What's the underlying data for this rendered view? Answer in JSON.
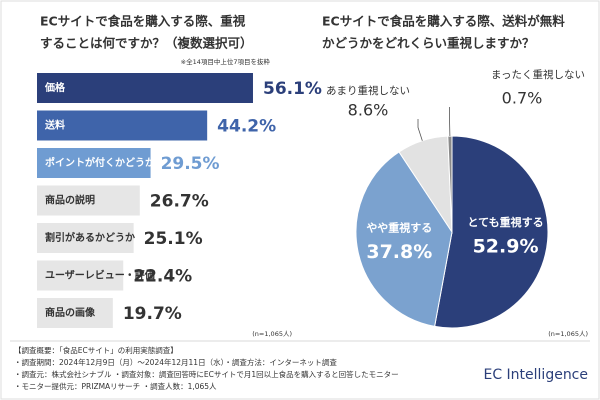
{
  "chart_data": [
    {
      "type": "barh",
      "title": [
        "ECサイトで食品を購入する際、重視",
        "することは何ですか？（複数選択可）"
      ],
      "subtitle": "※全14項目中上位7項目を抜粋",
      "categories": [
        "価格",
        "送料",
        "ポイントが付くかどうか",
        "商品の説明",
        "割引があるかどうか",
        "ユーザーレビュー・評価",
        "商品の画像"
      ],
      "values": [
        56.1,
        44.2,
        29.5,
        26.7,
        25.1,
        22.4,
        19.7
      ],
      "value_labels": [
        "56.1%",
        "44.2%",
        "29.5%",
        "26.7%",
        "25.1%",
        "22.4%",
        "19.7%"
      ],
      "colors": [
        "#2b3f7a",
        "#3f64aa",
        "#6f9cd2",
        "#e6e6e6",
        "#e6e6e6",
        "#e6e6e6",
        "#e6e6e6"
      ],
      "label_colors": [
        "#2b3f7a",
        "#3f64aa",
        "#6f9cd2",
        "#333333",
        "#333333",
        "#333333",
        "#333333"
      ],
      "xlim": [
        0,
        100
      ],
      "note": "(n=1,065人)"
    },
    {
      "type": "pie",
      "title": [
        "ECサイトで食品を購入する際、送料が無料",
        "かどうかをどれくらい重視しますか？"
      ],
      "categories": [
        "とても重視する",
        "やや重視する",
        "あまり重視しない",
        "まったく重視しない"
      ],
      "values": [
        52.9,
        37.8,
        8.6,
        0.7
      ],
      "value_labels": [
        "52.9%",
        "37.8%",
        "8.6%",
        "0.7%"
      ],
      "colors": [
        "#2b3f7a",
        "#7ba2cf",
        "#e2e2e2",
        "#8a8a8a"
      ],
      "note": "(n=1,065人)"
    }
  ],
  "footer": {
    "lines": [
      "【調査概要：「食品ECサイト」の利用実態調査】",
      "・調査期間：2024年12月9日（月）～2024年12月11日（水）・調査方法：インターネット調査",
      "・調査元：株式会社シナブル ・調査対象：調査回答時にECサイトで月1回以上食品を購入すると回答したモニター",
      "・モニター提供元：PRIZMAリサーチ ・調査人数：1,065人"
    ],
    "brand": "EC Intelligence"
  }
}
